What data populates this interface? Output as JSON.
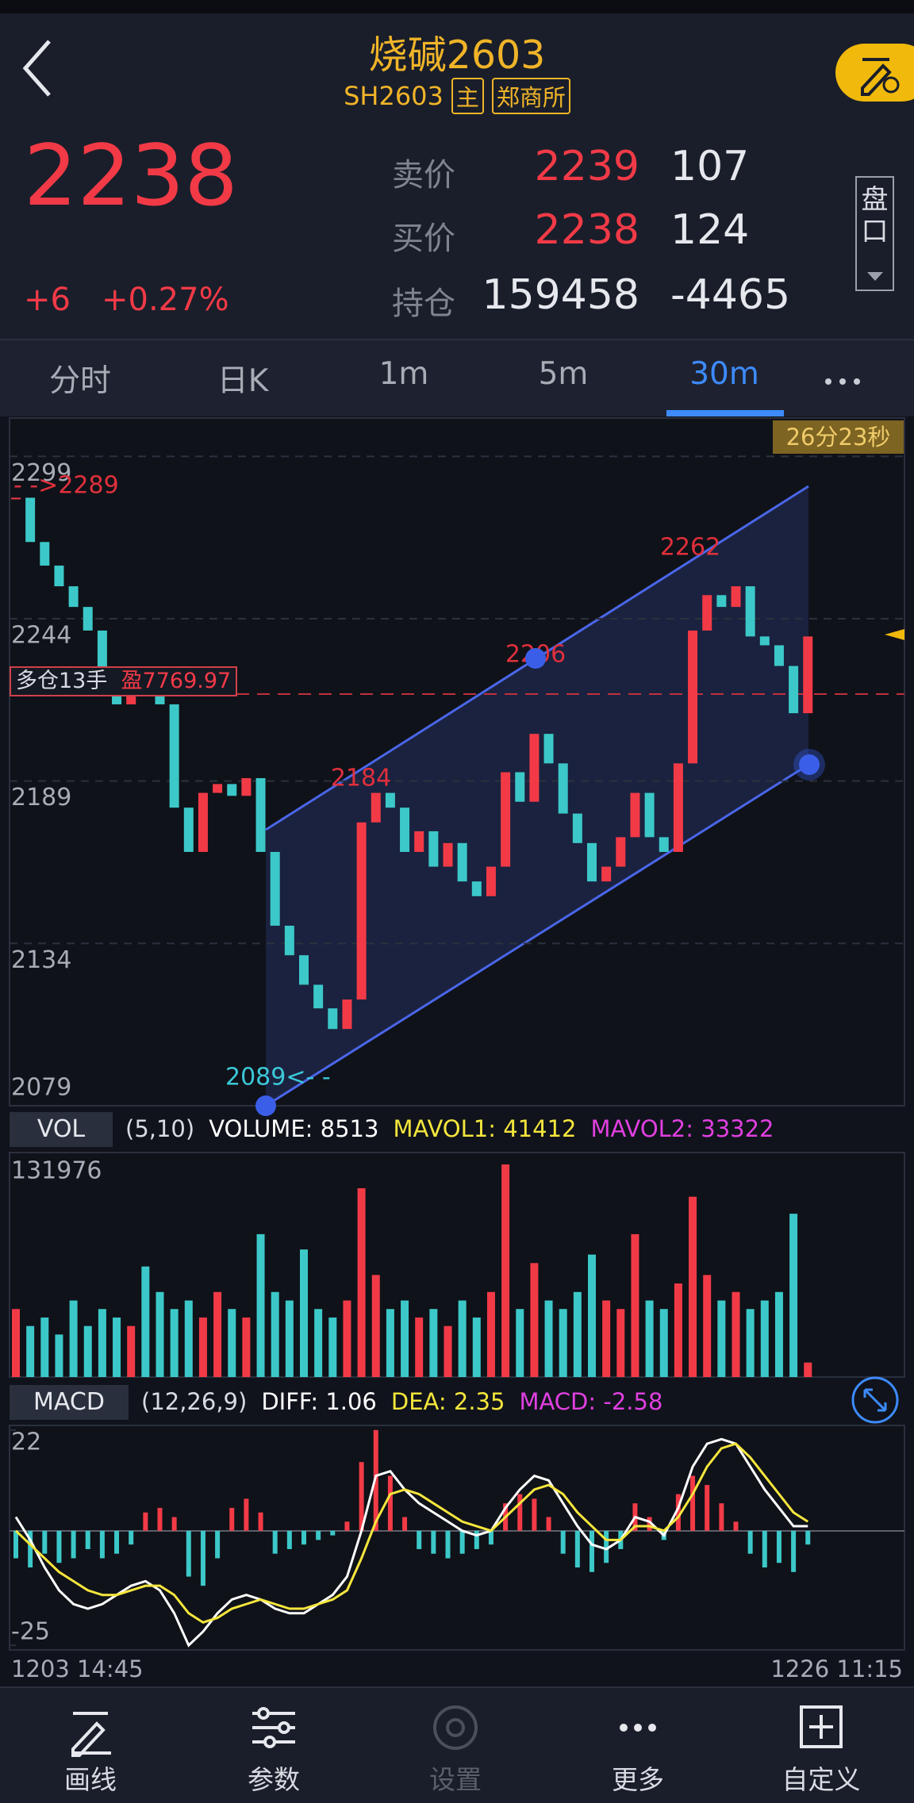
{
  "header": {
    "title": "烧碱2603",
    "code": "SH2603",
    "main_tag": "主",
    "exchange": "郑商所"
  },
  "quote": {
    "price": 2238,
    "change": "+6",
    "change_pct": "+0.27%"
  },
  "book": [
    {
      "label": "卖价",
      "price": 2239,
      "qty": 107
    },
    {
      "label": "买价",
      "price": 2238,
      "qty": 124
    },
    {
      "label": "持仓",
      "price": 159458,
      "qty": -4465
    }
  ],
  "side_button": "盘口",
  "tabs": {
    "items": [
      "分时",
      "日K",
      "1m",
      "5m",
      "30m"
    ],
    "active": 4
  },
  "chart_data": [
    {
      "type": "candlestick",
      "timer": "26分23秒",
      "colors": {
        "up": "#f23a47",
        "down": "#3cc8c8"
      },
      "closes": [
        2285,
        2270,
        2262,
        2255,
        2248,
        2240,
        2225,
        2215,
        2222,
        2218,
        2215,
        2180,
        2165,
        2185,
        2188,
        2184,
        2190,
        2165,
        2140,
        2130,
        2120,
        2112,
        2105,
        2115,
        2175,
        2185,
        2180,
        2165,
        2172,
        2160,
        2168,
        2155,
        2150,
        2160,
        2192,
        2182,
        2205,
        2195,
        2178,
        2168,
        2155,
        2160,
        2170,
        2185,
        2170,
        2165,
        2195,
        2240,
        2252,
        2248,
        2255,
        2238,
        2235,
        2228,
        2212,
        2238
      ],
      "ylim": [
        2079,
        2312
      ],
      "yticks": [
        2299,
        2244,
        2189,
        2134,
        2079
      ],
      "annotations": [
        "- ->2289",
        "2262",
        "2206",
        "2184",
        "2089<- -"
      ],
      "position": {
        "side": "多仓13手",
        "profit": "盈7769.97"
      }
    },
    {
      "type": "volume",
      "name": "VOL",
      "params": "(5,10)",
      "readouts": [
        {
          "label": "VOLUME:",
          "value": 8513,
          "color": "#ffffff"
        },
        {
          "label": "MAVOL1:",
          "value": 41412,
          "color": "#f5e63c"
        },
        {
          "label": "MAVOL2:",
          "value": 33322,
          "color": "#e040e0"
        }
      ],
      "values": [
        40000,
        30000,
        35000,
        25000,
        45000,
        30000,
        40000,
        35000,
        30000,
        65000,
        50000,
        40000,
        45000,
        35000,
        50000,
        40000,
        35000,
        84000,
        50000,
        45000,
        75000,
        40000,
        35000,
        45000,
        111000,
        60000,
        40000,
        45000,
        35000,
        40000,
        30000,
        45000,
        35000,
        50000,
        125000,
        40000,
        67000,
        45000,
        40000,
        50000,
        72000,
        45000,
        40000,
        84000,
        45000,
        40000,
        55000,
        106000,
        60000,
        45000,
        50000,
        40000,
        45000,
        50000,
        96000,
        8513
      ],
      "ylim": [
        0,
        131976
      ],
      "yticks": [
        131976
      ]
    },
    {
      "type": "macd",
      "name": "MACD",
      "params": "(12,26,9)",
      "readouts": [
        {
          "label": "DIFF:",
          "value": 1.06,
          "color": "#ffffff"
        },
        {
          "label": "DEA:",
          "value": 2.35,
          "color": "#f5e63c"
        },
        {
          "label": "MACD:",
          "value": -2.58,
          "color": "#e040e0"
        }
      ],
      "hist": [
        -6,
        -8,
        -5,
        -7,
        -6,
        -4,
        -6,
        -5,
        -3,
        4,
        5,
        3,
        -10,
        -12,
        -6,
        5,
        7,
        4,
        -5,
        -4,
        -3,
        -2,
        -1,
        2,
        15,
        22,
        12,
        3,
        -4,
        -5,
        -6,
        -5,
        -4,
        -3,
        6,
        8,
        7,
        3,
        -5,
        -8,
        -9,
        -7,
        -4,
        6,
        3,
        -2,
        8,
        12,
        10,
        6,
        2,
        -5,
        -8,
        -7,
        -9,
        -3
      ],
      "series": [
        {
          "name": "DIFF",
          "color": "#ffffff",
          "values": [
            3,
            -2,
            -8,
            -13,
            -16,
            -17,
            -16,
            -14,
            -12,
            -11,
            -13,
            -18,
            -25,
            -22,
            -18,
            -15,
            -14,
            -15,
            -17,
            -18,
            -18,
            -16,
            -14,
            -10,
            0,
            12,
            13,
            9,
            6,
            4,
            2,
            0,
            -1,
            0,
            5,
            9,
            12,
            11,
            6,
            1,
            -3,
            -4,
            -2,
            3,
            2,
            -1,
            5,
            14,
            19,
            20,
            19,
            14,
            9,
            5,
            1,
            1
          ]
        },
        {
          "name": "DEA",
          "color": "#f5e63c",
          "values": [
            0,
            -3,
            -6,
            -9,
            -11,
            -13,
            -14,
            -14,
            -13,
            -12,
            -12,
            -14,
            -18,
            -20,
            -19,
            -17,
            -16,
            -15,
            -16,
            -17,
            -17,
            -16,
            -15,
            -13,
            -6,
            2,
            8,
            9,
            8,
            6,
            4,
            2,
            1,
            0,
            3,
            6,
            9,
            10,
            8,
            4,
            1,
            -2,
            -2,
            1,
            1,
            0,
            3,
            8,
            14,
            18,
            19,
            16,
            12,
            8,
            4,
            2
          ]
        }
      ],
      "ylim": [
        -26,
        23
      ],
      "yticks": [
        22,
        -25
      ]
    }
  ],
  "time_axis": [
    "1203 14:45",
    "1226 11:15"
  ],
  "nav": {
    "items": [
      "画线",
      "参数",
      "设置",
      "更多",
      "自定义"
    ],
    "disabled": 2
  }
}
